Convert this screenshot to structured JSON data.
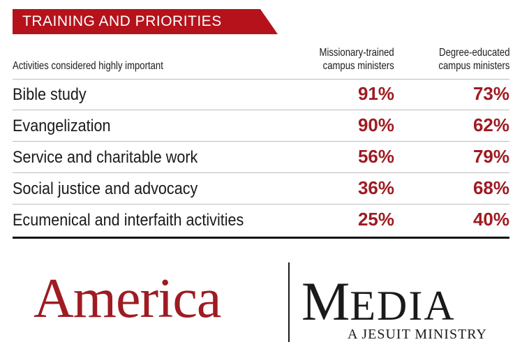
{
  "banner": {
    "title": "TRAINING AND PRIORITIES",
    "color": "#b5121b"
  },
  "chart_data": {
    "type": "table",
    "title": "TRAINING AND PRIORITIES",
    "row_header": "Activities considered highly important",
    "columns": [
      {
        "line1": "Missionary-trained",
        "line2": "campus ministers"
      },
      {
        "line1": "Degree-educated",
        "line2": "campus ministers"
      }
    ],
    "rows": [
      {
        "label": "Bible study",
        "v1": "91%",
        "v2": "73%"
      },
      {
        "label": "Evangelization",
        "v1": "90%",
        "v2": "62%"
      },
      {
        "label": "Service and charitable work",
        "v1": "56%",
        "v2": "79%"
      },
      {
        "label": "Social justice and advocacy",
        "v1": "36%",
        "v2": "68%"
      },
      {
        "label": "Ecumenical and interfaith activities",
        "v1": "25%",
        "v2": "40%"
      }
    ],
    "value_color": "#9e1b22"
  },
  "logo": {
    "left": "America",
    "right_initial": "M",
    "right_rest": "EDIA",
    "tagline": "A JESUIT MINISTRY"
  }
}
